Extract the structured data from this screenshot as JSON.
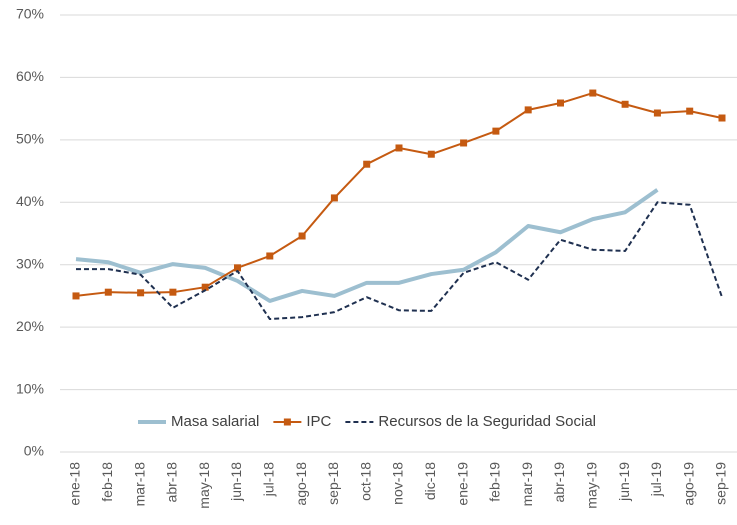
{
  "chart_data": {
    "type": "line",
    "categories": [
      "ene-18",
      "feb-18",
      "mar-18",
      "abr-18",
      "may-18",
      "jun-18",
      "jul-18",
      "ago-18",
      "sep-18",
      "oct-18",
      "nov-18",
      "dic-18",
      "ene-19",
      "feb-19",
      "mar-19",
      "abr-19",
      "may-19",
      "jun-19",
      "jul-19",
      "ago-19",
      "sep-19"
    ],
    "series": [
      {
        "name": "Masa salarial",
        "color": "#9dbfd0",
        "width": 4,
        "dashed": false,
        "marker": "none",
        "values": [
          30.9,
          30.4,
          28.7,
          30.1,
          29.5,
          27.4,
          24.2,
          25.8,
          25.0,
          27.1,
          27.1,
          28.5,
          29.2,
          32.0,
          36.2,
          35.2,
          37.3,
          38.4,
          42.0,
          null,
          null
        ]
      },
      {
        "name": "IPC",
        "color": "#c55a11",
        "width": 2,
        "dashed": false,
        "marker": "square",
        "values": [
          25.0,
          25.6,
          25.5,
          25.6,
          26.4,
          29.5,
          31.4,
          34.6,
          40.7,
          46.1,
          48.7,
          47.7,
          49.5,
          51.4,
          54.8,
          55.9,
          57.5,
          55.7,
          54.3,
          54.6,
          53.5
        ]
      },
      {
        "name": "Recursos de la Seguridad Social",
        "color": "#1f3050",
        "width": 2,
        "dashed": true,
        "marker": "none",
        "values": [
          29.3,
          29.3,
          28.4,
          23.1,
          25.9,
          29.0,
          21.3,
          21.6,
          22.4,
          24.8,
          22.7,
          22.6,
          28.7,
          30.4,
          27.6,
          34.0,
          32.4,
          32.2,
          40.0,
          39.6,
          24.8
        ]
      }
    ],
    "ylim": [
      0,
      70
    ],
    "yticks": [
      {
        "value": 0,
        "label": "0%"
      },
      {
        "value": 10,
        "label": "10%"
      },
      {
        "value": 20,
        "label": "20%"
      },
      {
        "value": 30,
        "label": "30%"
      },
      {
        "value": 40,
        "label": "40%"
      },
      {
        "value": 50,
        "label": "50%"
      },
      {
        "value": 60,
        "label": "60%"
      },
      {
        "value": 70,
        "label": "70%"
      }
    ],
    "grid": true,
    "legend": "bottom"
  }
}
